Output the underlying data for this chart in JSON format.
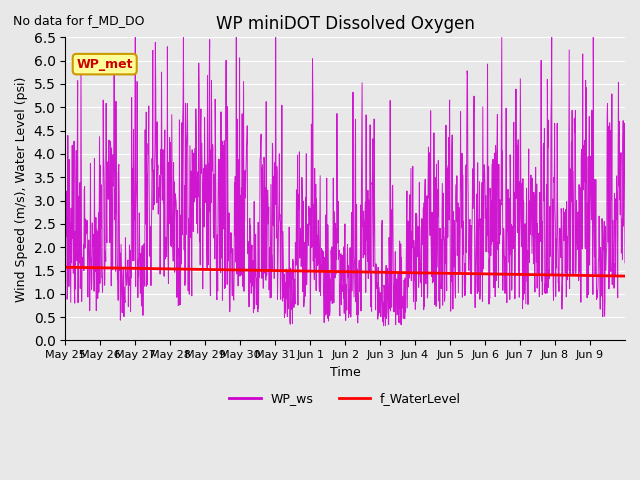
{
  "title": "WP miniDOT Dissolved Oxygen",
  "subtitle": "No data for f_MD_DO",
  "ylabel": "Wind Speed (m/s), Water Level (psi)",
  "xlabel": "Time",
  "ylim": [
    0.0,
    6.5
  ],
  "yticks": [
    0.0,
    0.5,
    1.0,
    1.5,
    2.0,
    2.5,
    3.0,
    3.5,
    4.0,
    4.5,
    5.0,
    5.5,
    6.0,
    6.5
  ],
  "bg_color": "#e8e8e8",
  "plot_bg_color": "#e8e8e8",
  "ws_color": "#cc00cc",
  "wl_color": "#ff0000",
  "legend_ws": "WP_ws",
  "legend_wl": "f_WaterLevel",
  "annotation": "WP_met",
  "annotation_color": "#cc0000",
  "annotation_bg": "#ffff99",
  "annotation_border": "#cc9900",
  "tick_labels": [
    "May 25",
    "May 26",
    "May 27",
    "May 28",
    "May 29",
    "May 30",
    "May 31",
    "Jun 1",
    "Jun 2",
    "Jun 3",
    "Jun 4",
    "Jun 5",
    "Jun 6",
    "Jun 7",
    "Jun 8",
    "Jun 9"
  ],
  "n_days": 16
}
